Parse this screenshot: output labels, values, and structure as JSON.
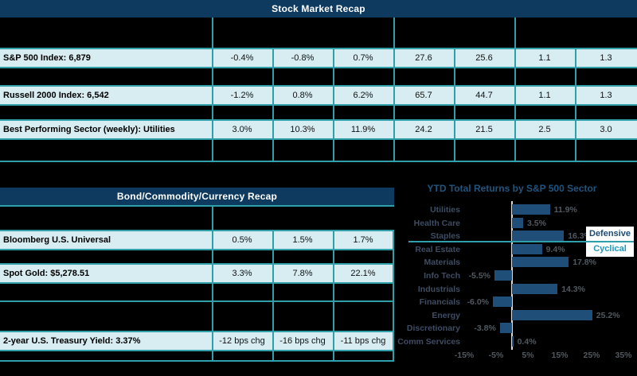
{
  "stock_table": {
    "title": "Stock Market Recap",
    "rows": [
      {
        "label": "S&P 500 Index: 6,879",
        "values": [
          "-0.4%",
          "-0.8%",
          "0.7%",
          "27.6",
          "25.6",
          "1.1",
          "1.3"
        ]
      },
      {
        "label": "Russell 2000 Index: 6,542",
        "values": [
          "-1.2%",
          "0.8%",
          "6.2%",
          "65.7",
          "44.7",
          "1.1",
          "1.3"
        ]
      },
      {
        "label": "Best Performing Sector (weekly): Utilities",
        "values": [
          "3.0%",
          "10.3%",
          "11.9%",
          "24.2",
          "21.5",
          "2.5",
          "3.0"
        ]
      }
    ]
  },
  "bond_table": {
    "title": "Bond/Commodity/Currency Recap",
    "rows": [
      {
        "label": "Bloomberg U.S. Universal",
        "values": [
          "0.5%",
          "1.5%",
          "1.7%"
        ]
      },
      {
        "label": "Spot Gold: $5,278.51",
        "values": [
          "3.3%",
          "7.8%",
          "22.1%"
        ]
      },
      {
        "label": "2-year U.S. Treasury Yield: 3.37%",
        "values": [
          "-12 bps chg",
          "-16 bps chg",
          "-11 bps chg"
        ]
      }
    ]
  },
  "chart_data": {
    "type": "bar",
    "orientation": "horizontal",
    "title": "YTD Total Returns by S&P 500 Sector",
    "categories": [
      "Utilities",
      "Health Care",
      "Staples",
      "Real Estate",
      "Materials",
      "Info Tech",
      "Industrials",
      "Financials",
      "Energy",
      "Discretionary",
      "Comm Services"
    ],
    "values": [
      11.9,
      3.5,
      16.3,
      9.4,
      17.8,
      -5.5,
      14.3,
      -6.0,
      25.2,
      -3.8,
      0.4
    ],
    "value_labels": [
      "11.9%",
      "3.5%",
      "16.3%",
      "9.4%",
      "17.8%",
      "-5.5%",
      "14.3%",
      "-6.0%",
      "25.2%",
      "-3.8%",
      "0.4%"
    ],
    "x_tick_labels": [
      "-15%",
      "-5%",
      "5%",
      "15%",
      "25%",
      "35%"
    ],
    "x_tick_values": [
      -15,
      -5,
      5,
      15,
      25,
      35
    ],
    "xlim": [
      -20,
      40
    ],
    "grid": false,
    "legend": {
      "position": "right",
      "entries": [
        "Defensive",
        "Cyclical"
      ]
    },
    "group_divider": {
      "between": [
        "Staples",
        "Real Estate"
      ],
      "defensive_group": [
        "Utilities",
        "Health Care",
        "Staples"
      ],
      "cyclical_group": [
        "Real Estate",
        "Materials",
        "Info Tech",
        "Industrials",
        "Financials",
        "Energy",
        "Discretionary",
        "Comm Services"
      ]
    }
  },
  "colors": {
    "background": "#000000",
    "header_navy": "#0d3a5e",
    "grid_teal": "#2f9faa",
    "row_fill": "#d8edf2",
    "bar_navy": "#1f4e79",
    "chart_title_blue": "#1f5580",
    "defensive_label_color": "#1b4a75",
    "cyclical_label_color": "#2098bb"
  }
}
